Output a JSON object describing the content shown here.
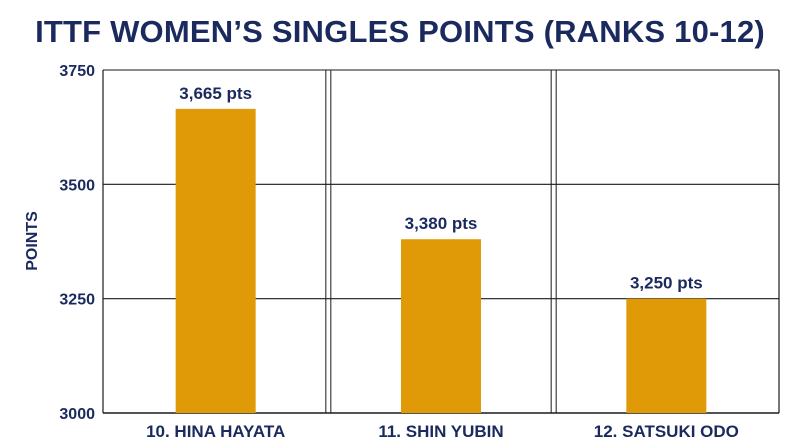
{
  "chart_data": {
    "type": "bar",
    "title": "ITTF WOMEN’S SINGLES POINTS (RANKS 10-12)",
    "xlabel": "",
    "ylabel": "POINTS",
    "categories": [
      "10. HINA HAYATA",
      "11. SHIN YUBIN",
      "12. SATSUKI ODO"
    ],
    "values": [
      3665,
      3380,
      3250
    ],
    "data_labels": [
      "3,665 pts",
      "3,380 pts",
      "3,250 pts"
    ],
    "ylim": [
      3000,
      3750
    ],
    "yticks": [
      3000,
      3250,
      3500,
      3750
    ],
    "grid": true,
    "legend": "none",
    "colors": {
      "bar": "#e09a08",
      "text": "#1b2a5e",
      "grid": "#1a1a1a"
    }
  }
}
